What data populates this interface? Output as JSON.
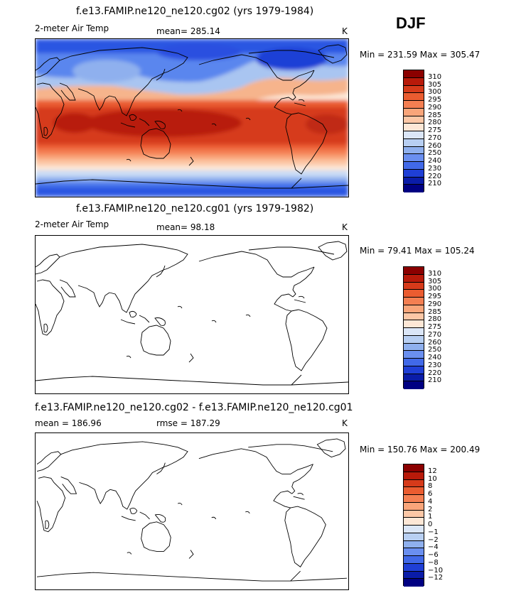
{
  "season": "DJF",
  "panels": [
    {
      "title": "f.e13.FAMIP.ne120_ne120.cg02 (yrs 1979-1984)",
      "left_label": "2-meter Air Temp",
      "stat_label": "mean= 285.14",
      "units": "K",
      "minmax": "Min = 231.59 Max = 305.47",
      "filled": true,
      "colorbar_labels": [
        "310",
        "305",
        "300",
        "295",
        "290",
        "285",
        "280",
        "275",
        "270",
        "260",
        "250",
        "240",
        "230",
        "220",
        "210"
      ]
    },
    {
      "title": "f.e13.FAMIP.ne120_ne120.cg01 (yrs 1979-1982)",
      "left_label": "2-meter Air Temp",
      "stat_label": "mean=  98.18",
      "units": "K",
      "minmax": "Min =  79.41 Max = 105.24",
      "filled": false,
      "colorbar_labels": [
        "310",
        "305",
        "300",
        "295",
        "290",
        "285",
        "280",
        "275",
        "270",
        "260",
        "250",
        "240",
        "230",
        "220",
        "210"
      ]
    },
    {
      "title": "f.e13.FAMIP.ne120_ne120.cg02 - f.e13.FAMIP.ne120_ne120.cg01",
      "left_label": "mean = 186.96",
      "stat_label": "rmse = 187.29",
      "units": "K",
      "minmax": "Min = 150.76 Max = 200.49",
      "filled": false,
      "colorbar_labels": [
        "12",
        "10",
        "8",
        "6",
        "4",
        "2",
        "1",
        "0",
        "−1",
        "−2",
        "−4",
        "−6",
        "−8",
        "−10",
        "−12"
      ]
    }
  ],
  "colorbar_colors": [
    "#8b0000",
    "#b81a0a",
    "#d63a1a",
    "#ea5c30",
    "#f47f52",
    "#f9a57a",
    "#fcc7a6",
    "#fde7d6",
    "#dbe6f7",
    "#b8cff2",
    "#8fb0ee",
    "#6a8ff0",
    "#4169e8",
    "#1f3fd6",
    "#0a1ca8",
    "#000082"
  ]
}
